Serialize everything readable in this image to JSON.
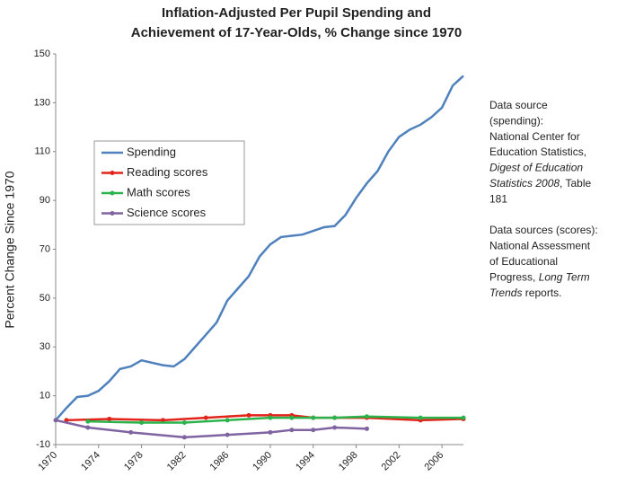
{
  "chart_data": {
    "type": "line",
    "title": [
      "Inflation-Adjusted Per Pupil Spending and",
      "Achievement of 17-Year-Olds,  % Change since 1970"
    ],
    "y_label": "Percent Change Since 1970",
    "xlim": [
      1970,
      2008
    ],
    "xticks": [
      1970,
      1974,
      1978,
      1982,
      1986,
      1990,
      1994,
      1998,
      2002,
      2006
    ],
    "ylim": [
      -10,
      150
    ],
    "yticks": [
      -10,
      10,
      30,
      50,
      70,
      90,
      110,
      130,
      150
    ],
    "grid": false,
    "markers": true,
    "series": [
      {
        "name": "Spending",
        "color": "#4f81bd",
        "x": [
          1970,
          1971,
          1972,
          1973,
          1974,
          1975,
          1976,
          1977,
          1978,
          1979,
          1980,
          1981,
          1982,
          1983,
          1984,
          1985,
          1986,
          1987,
          1988,
          1989,
          1990,
          1991,
          1992,
          1993,
          1994,
          1995,
          1996,
          1997,
          1998,
          1999,
          2000,
          2001,
          2002,
          2003,
          2004,
          2005,
          2006,
          2007,
          2008
        ],
        "values": [
          0,
          5,
          9.5,
          10,
          12,
          16,
          21,
          22,
          24.5,
          23.5,
          22.5,
          22,
          25,
          30,
          35,
          40,
          49,
          54,
          59,
          67,
          72,
          75,
          75.5,
          76,
          77.5,
          79,
          79.5,
          84,
          91,
          97,
          102,
          110,
          116,
          119,
          121,
          124,
          128,
          137,
          141
        ]
      },
      {
        "name": "Reading scores",
        "color": "#e2231a",
        "x": [
          1971,
          1975,
          1980,
          1984,
          1988,
          1990,
          1992,
          1994,
          1996,
          1999,
          2004,
          2008
        ],
        "values": [
          0,
          0.5,
          0,
          1,
          2,
          2,
          2,
          1,
          1,
          1,
          0,
          0.5
        ]
      },
      {
        "name": "Math scores",
        "color": "#2bb34b",
        "x": [
          1973,
          1978,
          1982,
          1986,
          1990,
          1992,
          1994,
          1996,
          1999,
          2004,
          2008
        ],
        "values": [
          -0.5,
          -1,
          -1,
          0,
          1,
          1,
          1,
          1,
          1.5,
          1,
          1
        ]
      },
      {
        "name": "Science scores",
        "color": "#8064a2",
        "x": [
          1970,
          1973,
          1977,
          1982,
          1986,
          1990,
          1992,
          1994,
          1996,
          1999
        ],
        "values": [
          0,
          -3,
          -5,
          -7,
          -6,
          -5,
          -4,
          -4,
          -3,
          -3.5
        ]
      }
    ],
    "legend": "upper left",
    "notes": [
      [
        {
          "text": "Data source"
        }
      ],
      [
        {
          "text": "(spending):"
        }
      ],
      [
        {
          "text": "National Center for"
        }
      ],
      [
        {
          "text": "Education Statistics,"
        }
      ],
      [
        {
          "text": "Digest of Education",
          "italic": true
        }
      ],
      [
        {
          "text": "Statistics 2008",
          "italic": true
        },
        {
          "text": ", Table"
        }
      ],
      [
        {
          "text": "181"
        }
      ],
      [],
      [
        {
          "text": "Data sources (scores):"
        }
      ],
      [
        {
          "text": "National Assessment"
        }
      ],
      [
        {
          "text": "of Educational"
        }
      ],
      [
        {
          "text": "Progress, "
        },
        {
          "text": "Long Term",
          "italic": true
        }
      ],
      [
        {
          "text": "Trends",
          "italic": true
        },
        {
          "text": " reports."
        }
      ]
    ]
  }
}
